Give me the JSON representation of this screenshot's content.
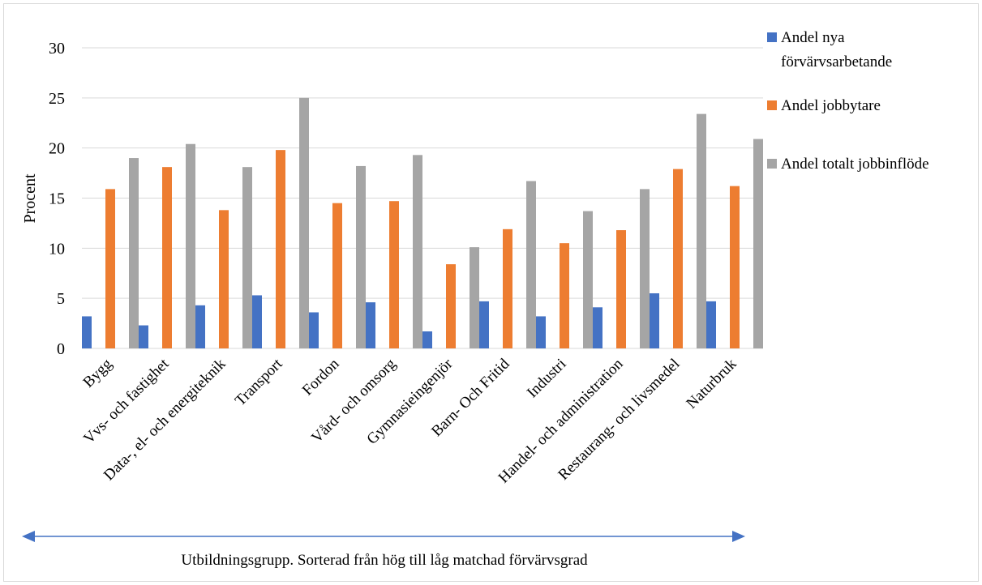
{
  "chart_data": {
    "type": "bar",
    "ylabel": "Procent",
    "xlabel": "Utbildningsgrupp. Sorterad från hög till låg matchad förvärvsgrad",
    "ylim": [
      0,
      30
    ],
    "yticks": [
      0,
      5,
      10,
      15,
      20,
      25,
      30
    ],
    "grid": "horizontal",
    "legend_position": "right",
    "categories": [
      "Bygg",
      "Vvs- och fastighet",
      "Data-, el- och energiteknik",
      "Transport",
      "Fordon",
      "Vård- och omsorg",
      "Gymnasieingenjör",
      "Barn- Och Fritid",
      "Industri",
      "Handel- och administration",
      "Restaurang- och livsmedel",
      "Naturbruk"
    ],
    "series": [
      {
        "name": "Andel nya förvärvsarbetande",
        "legend_lines": [
          "Andel nya",
          "förvärvsarbetande"
        ],
        "color": "#4472C4",
        "values": [
          3.2,
          2.3,
          4.3,
          5.3,
          3.6,
          4.6,
          1.7,
          4.7,
          3.2,
          4.1,
          5.5,
          4.7
        ]
      },
      {
        "name": "Andel jobbytare",
        "legend_lines": [
          "Andel jobbytare"
        ],
        "color": "#ED7D31",
        "values": [
          15.9,
          18.1,
          13.8,
          19.8,
          14.5,
          14.7,
          8.4,
          11.9,
          10.5,
          11.8,
          17.9,
          16.2
        ]
      },
      {
        "name": "Andel totalt jobbinflöde",
        "legend_lines": [
          "Andel totalt jobbinflöde"
        ],
        "color": "#A5A5A5",
        "values": [
          19.0,
          20.4,
          18.1,
          25.0,
          18.2,
          19.3,
          10.1,
          16.7,
          13.7,
          15.9,
          23.4,
          20.9
        ]
      }
    ],
    "arrow_color": "#4472C4",
    "grid_color": "#d9d9d9"
  }
}
